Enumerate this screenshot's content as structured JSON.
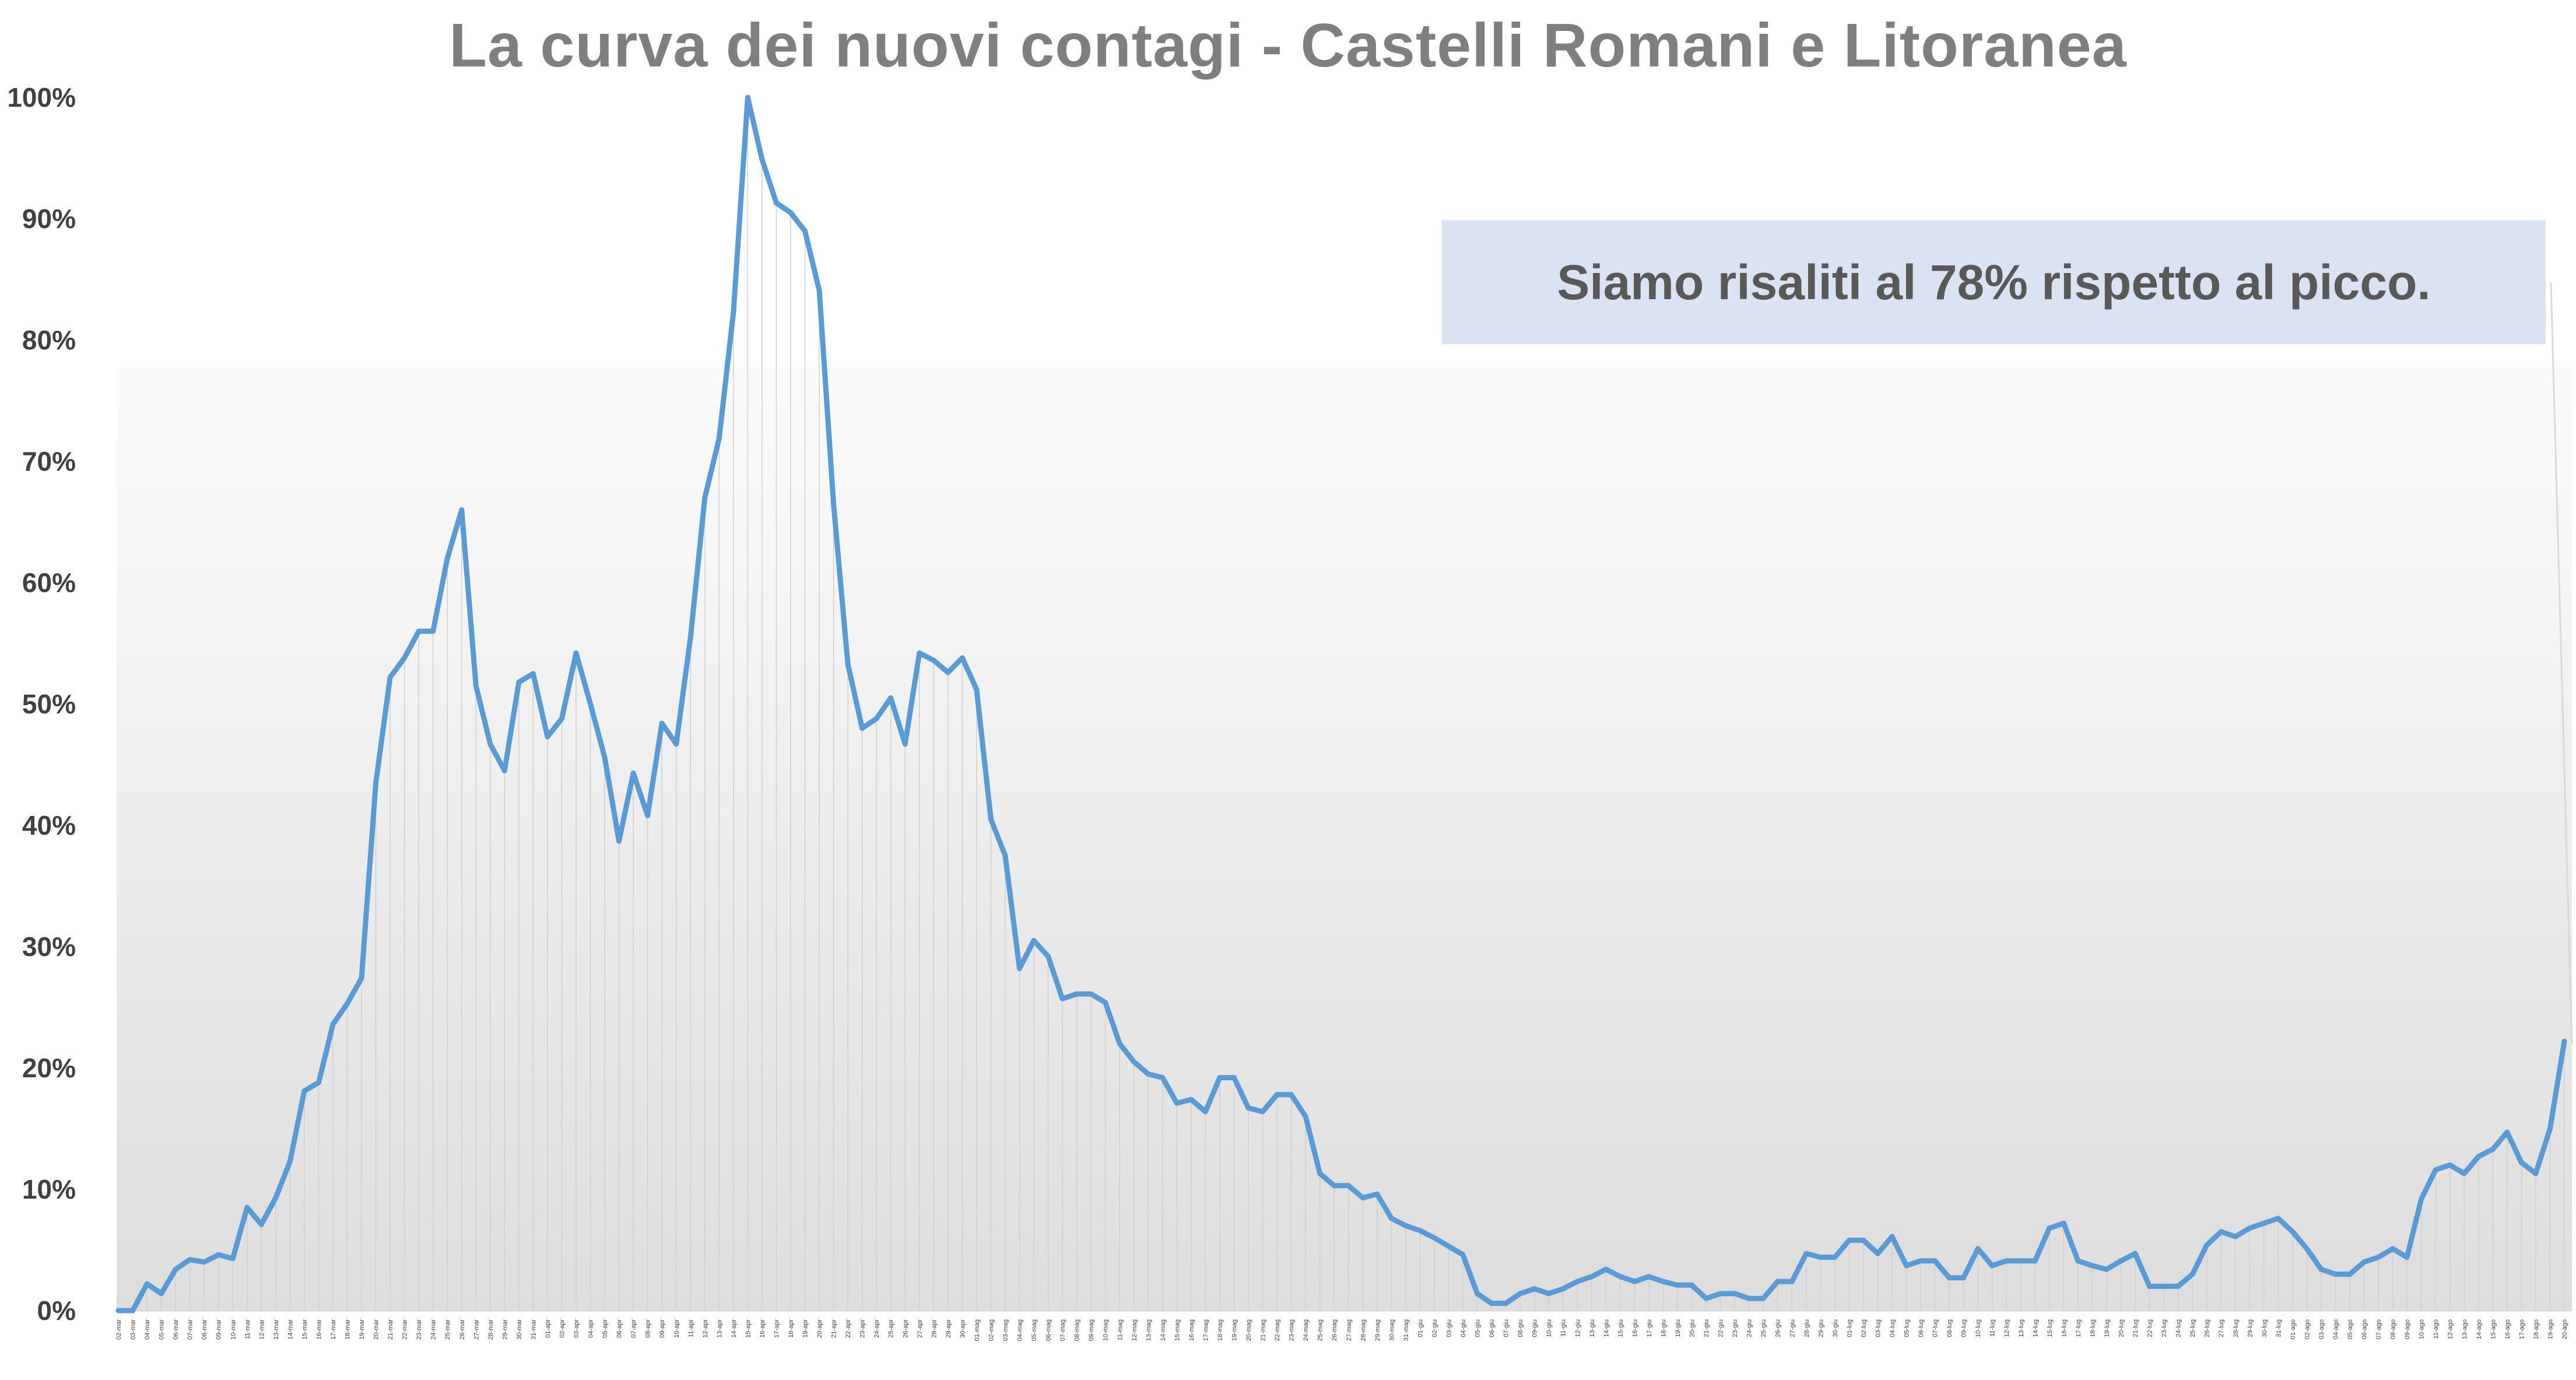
{
  "chart_data": {
    "type": "area",
    "title": "La curva dei nuovi contagi - Castelli Romani e Litoranea",
    "annotation": "Siamo risaliti al 78% rispetto al picco.",
    "xlabel": "",
    "ylabel": "",
    "ylim": [
      0,
      100
    ],
    "y_ticks": [
      "0%",
      "10%",
      "20%",
      "30%",
      "40%",
      "50%",
      "60%",
      "70%",
      "80%",
      "90%",
      "100%"
    ],
    "grid": false,
    "legend": "none",
    "colors": {
      "line": "#5b9bd5",
      "fill_top": "#d9d9d9",
      "fill_bottom": "#ffffff",
      "callout": "#dae3f3",
      "title": "#7f7f7f"
    },
    "x": [
      "02-mar",
      "03-mar",
      "04-mar",
      "05-mar",
      "06-mar",
      "07-mar",
      "08-mar",
      "09-mar",
      "10-mar",
      "11-mar",
      "12-mar",
      "13-mar",
      "14-mar",
      "15-mar",
      "16-mar",
      "17-mar",
      "18-mar",
      "19-mar",
      "20-mar",
      "21-mar",
      "22-mar",
      "23-mar",
      "24-mar",
      "25-mar",
      "26-mar",
      "27-mar",
      "28-mar",
      "29-mar",
      "30-mar",
      "31-mar",
      "01-apr",
      "02-apr",
      "03-apr",
      "04-apr",
      "05-apr",
      "06-apr",
      "07-apr",
      "08-apr",
      "09-apr",
      "10-apr",
      "11-apr",
      "12-apr",
      "13-apr",
      "14-apr",
      "15-apr",
      "16-apr",
      "17-apr",
      "18-apr",
      "19-apr",
      "20-apr",
      "21-apr",
      "22-apr",
      "23-apr",
      "24-apr",
      "25-apr",
      "26-apr",
      "27-apr",
      "28-apr",
      "29-apr",
      "30-apr",
      "01-mag",
      "02-mag",
      "03-mag",
      "04-mag",
      "05-mag",
      "06-mag",
      "07-mag",
      "08-mag",
      "09-mag",
      "10-mag",
      "11-mag",
      "12-mag",
      "13-mag",
      "14-mag",
      "15-mag",
      "16-mag",
      "17-mag",
      "18-mag",
      "19-mag",
      "20-mag",
      "21-mag",
      "22-mag",
      "23-mag",
      "24-mag",
      "25-mag",
      "26-mag",
      "27-mag",
      "28-mag",
      "29-mag",
      "30-mag",
      "31-mag",
      "01-giu",
      "02-giu",
      "03-giu",
      "04-giu",
      "05-giu",
      "06-giu",
      "07-giu",
      "08-giu",
      "09-giu",
      "10-giu",
      "11-giu",
      "12-giu",
      "13-giu",
      "14-giu",
      "15-giu",
      "16-giu",
      "17-giu",
      "18-giu",
      "19-giu",
      "20-giu",
      "21-giu",
      "22-giu",
      "23-giu",
      "24-giu",
      "25-giu",
      "26-giu",
      "27-giu",
      "28-giu",
      "29-giu",
      "30-giu",
      "01-lug",
      "02-lug",
      "03-lug",
      "04-lug",
      "05-lug",
      "06-lug",
      "07-lug",
      "08-lug",
      "09-lug",
      "10-lug",
      "11-lug",
      "12-lug",
      "13-lug",
      "14-lug",
      "15-lug",
      "16-lug",
      "17-lug",
      "18-lug",
      "19-lug",
      "20-lug",
      "21-lug",
      "22-lug",
      "23-lug",
      "24-lug",
      "25-lug",
      "26-lug",
      "27-lug",
      "28-lug",
      "29-lug",
      "30-lug",
      "31-lug",
      "01-ago",
      "02-ago",
      "03-ago",
      "04-ago",
      "05-ago",
      "06-ago",
      "07-ago",
      "08-ago",
      "09-ago",
      "10-ago",
      "11-ago",
      "12-ago",
      "13-ago",
      "14-ago",
      "15-ago",
      "16-ago",
      "17-ago",
      "18-ago",
      "19-ago",
      "20-ago"
    ],
    "series": [
      {
        "values": [
          0,
          0,
          2.2,
          1.4,
          3.4,
          4.2,
          4,
          4.6,
          4.3,
          8.5,
          7.1,
          9.3,
          12.3,
          18.1,
          18.8,
          23.6,
          25.3,
          27.4,
          43.5,
          52.2,
          53.8,
          56,
          56,
          62,
          66,
          51.5,
          46.7,
          44.5,
          51.8,
          52.5,
          47.3,
          48.8,
          54.2,
          50,
          45.6,
          38.7,
          44.3,
          40.8,
          48.4,
          46.7,
          55.5,
          67,
          71.9,
          82.3,
          100,
          94.9,
          91.3,
          90.5,
          89,
          84.1,
          66.5,
          53.3,
          48,
          48.8,
          50.5,
          46.7,
          54.2,
          53.6,
          52.6,
          53.8,
          51.2,
          40.5,
          37.5,
          28.2,
          30.5,
          29.2,
          25.7,
          26.1,
          26.1,
          25.4,
          22,
          20.5,
          19.5,
          19.2,
          17.1,
          17.4,
          16.4,
          19.2,
          19.2,
          16.7,
          16.4,
          17.8,
          17.8,
          16,
          11.3,
          10.3,
          10.3,
          9.3,
          9.6,
          7.6,
          7,
          6.6,
          6,
          5.3,
          4.6,
          1.4,
          0.6,
          0.6,
          1.4,
          1.8,
          1.4,
          1.8,
          2.4,
          2.8,
          3.4,
          2.8,
          2.4,
          2.8,
          2.4,
          2.1,
          2.1,
          1,
          1.4,
          1.4,
          1,
          1,
          2.4,
          2.4,
          4.7,
          4.4,
          4.4,
          5.8,
          5.8,
          4.7,
          6.1,
          3.7,
          4.1,
          4.1,
          2.7,
          2.7,
          5.1,
          3.7,
          4.1,
          4.1,
          4.1,
          6.8,
          7.2,
          4.1,
          3.7,
          3.4,
          4.1,
          4.7,
          2,
          2,
          2,
          3,
          5.4,
          6.5,
          6.1,
          6.8,
          7.2,
          7.6,
          6.5,
          5.1,
          3.4,
          3,
          3,
          4,
          4.4,
          5.1,
          4.4,
          9.2,
          11.6,
          12,
          11.3,
          12.7,
          13.3,
          14.7,
          12.2,
          11.3,
          15,
          22.2
        ]
      }
    ]
  }
}
